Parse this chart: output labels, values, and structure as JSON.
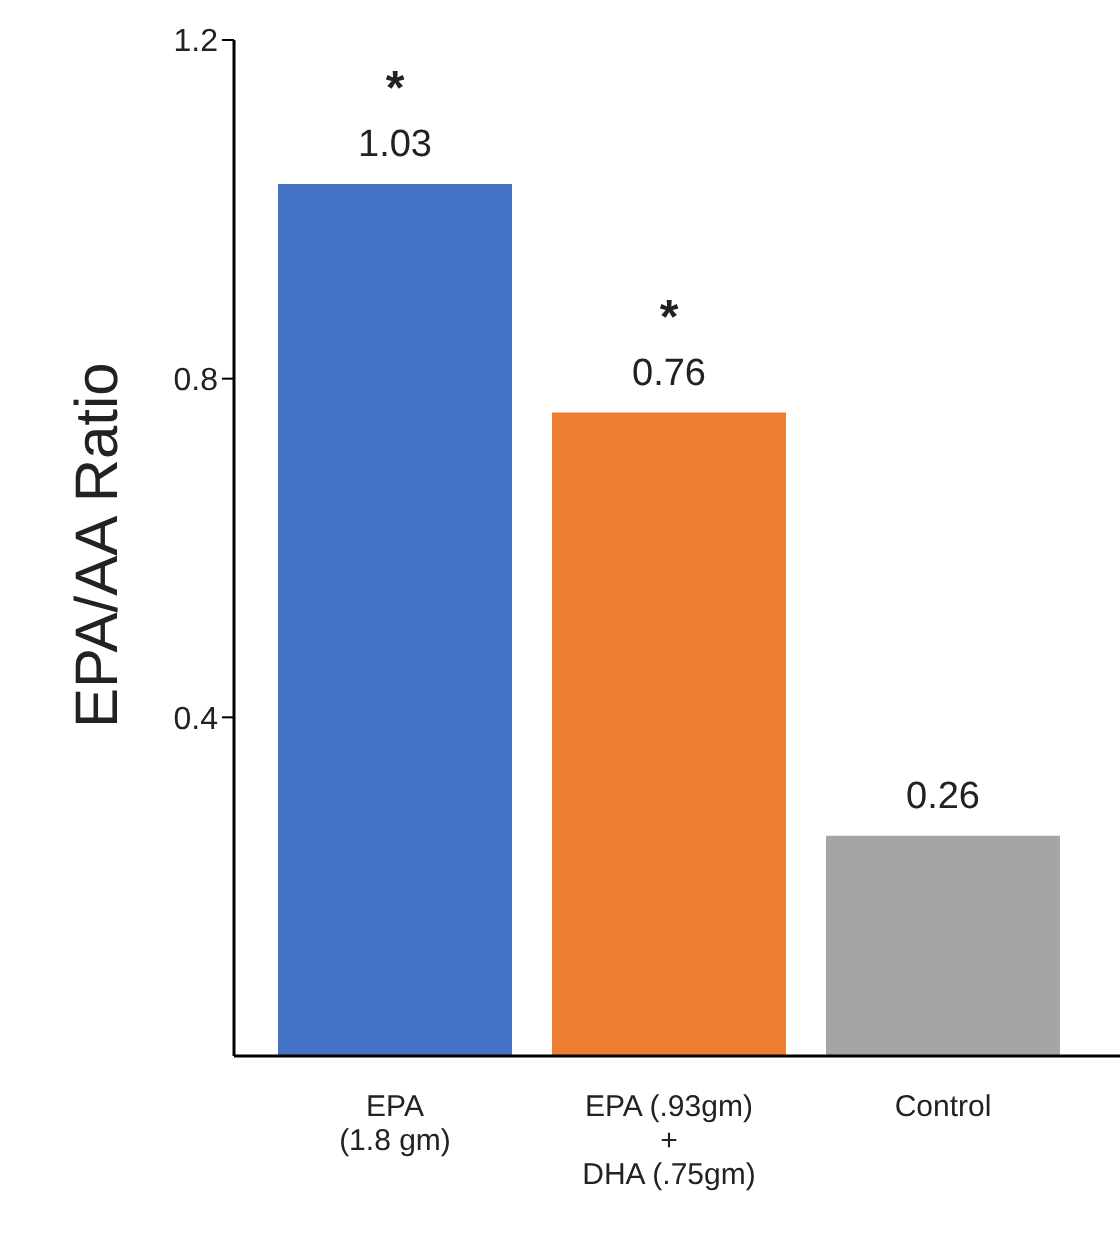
{
  "chart_data": {
    "type": "bar",
    "ylabel": "EPA/AA Ratio",
    "categories": [
      "EPA\n(1.8 gm)",
      "EPA (.93gm)\n+\nDHA (.75gm)",
      "Control"
    ],
    "values": [
      1.03,
      0.76,
      0.26
    ],
    "colors": [
      "#4472c4",
      "#ed7d31",
      "#a5a5a5"
    ],
    "ylim": [
      0,
      1.2
    ],
    "yticks": [
      0.4,
      0.8,
      1.2
    ],
    "data_labels": true,
    "grid": false,
    "annotations": [
      {
        "text": "*",
        "x": "EPA\n(1.8 gm)",
        "y": 1.03
      },
      {
        "text": "*",
        "x": "EPA (.93gm)\n+\nDHA (.75gm)",
        "y": 0.76
      }
    ]
  }
}
